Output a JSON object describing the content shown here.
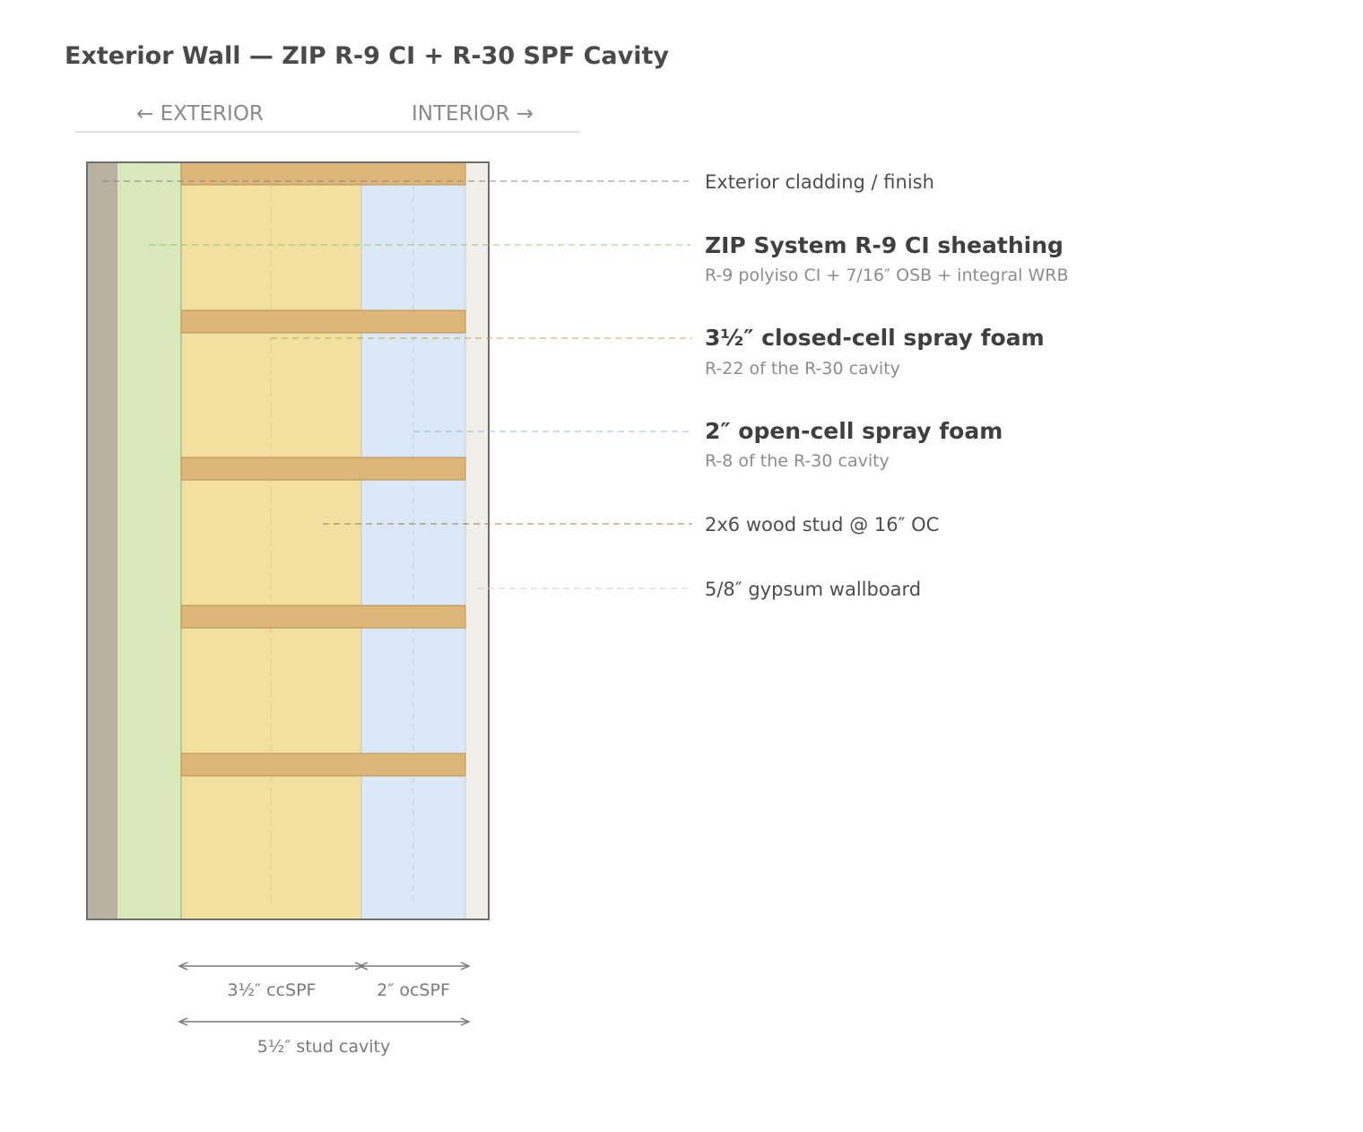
{
  "title": "Exterior Wall — ZIP R-9 CI + R-30 SPF Cavity",
  "orientation": {
    "exterior": "← EXTERIOR",
    "interior": "INTERIOR →"
  },
  "callouts": {
    "cladding": {
      "label": "Exterior cladding / finish"
    },
    "zip": {
      "label": "ZIP System R-9 CI sheathing",
      "sub": "R-9 polyiso CI + 7/16″ OSB + integral WRB"
    },
    "ccspf": {
      "label": "3½″ closed-cell spray foam",
      "sub": "R-22 of the R-30 cavity"
    },
    "ocspf": {
      "label": "2″ open-cell spray foam",
      "sub": "R-8 of the R-30 cavity"
    },
    "stud": {
      "label": "2x6 wood stud @ 16″ OC"
    },
    "gypsum": {
      "label": "5/8″ gypsum wallboard"
    }
  },
  "dimensions": {
    "ccspf": "3½″ ccSPF",
    "ocspf": "2″ ocSPF",
    "cavity": "5½″ stud cavity"
  },
  "colors": {
    "cladding": "#b8b1a1",
    "zip": "#d8e8bb",
    "ccspf": "#f2e0a0",
    "ocspf": "#dae9f5",
    "stud": "#deb678",
    "gypsum": "#f1efea",
    "outline": "#6e6e6e",
    "leader_cladding": "#888888",
    "leader_zip": "#9bc67a",
    "leader_ccspf": "#c8a040",
    "leader_ocspf": "#9ab8d6",
    "leader_stud": "#9c7a50",
    "leader_gypsum": "#c8ccd0"
  }
}
